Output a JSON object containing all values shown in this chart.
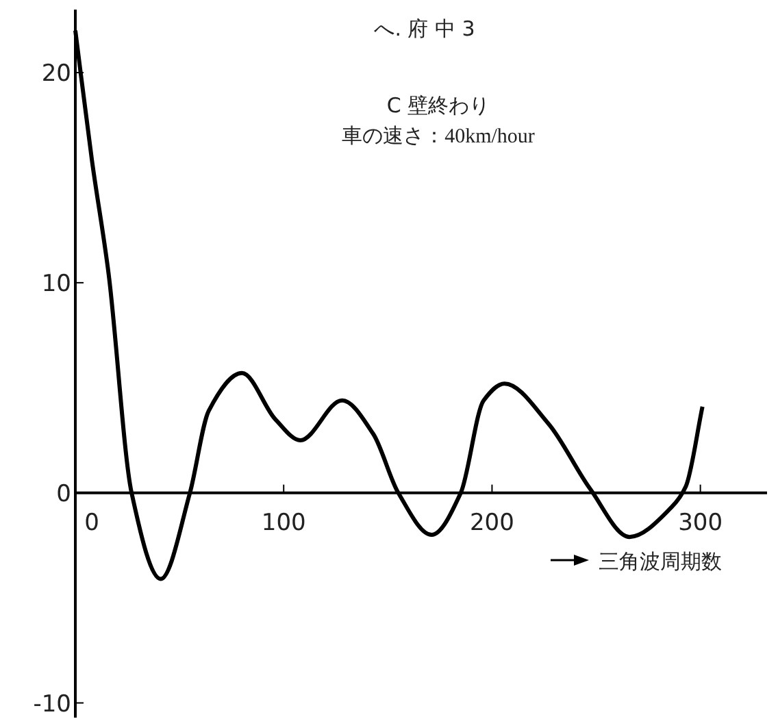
{
  "chart_data": {
    "type": "line",
    "title": "へ. 府 中 3",
    "subtitle": "C 壁終わり",
    "annotations": [
      "車の速さ：40km/hour"
    ],
    "xlabel": "三角波周期数",
    "x": [
      0,
      8,
      16,
      27,
      41,
      55,
      64,
      80,
      96,
      108,
      128,
      143,
      155,
      171,
      185,
      196,
      206,
      227,
      247,
      266,
      286,
      293,
      301
    ],
    "series": [
      {
        "color": "#000000",
        "values": [
          22,
          15.8,
          10.4,
          0,
          -4.1,
          0,
          3.9,
          5.7,
          3.5,
          2.5,
          4.4,
          2.8,
          0,
          -2.0,
          0,
          4.4,
          5.2,
          3.3,
          0.2,
          -2.1,
          -0.7,
          0.3,
          4.1
        ]
      }
    ],
    "xlim": [
      0,
      332
    ],
    "ylim": [
      -10.7,
      23
    ],
    "xticks": [
      0,
      100,
      200,
      300
    ],
    "yticks": [
      -10,
      0,
      10,
      20
    ],
    "grid": false,
    "marker": "none",
    "line_style": "solid"
  }
}
